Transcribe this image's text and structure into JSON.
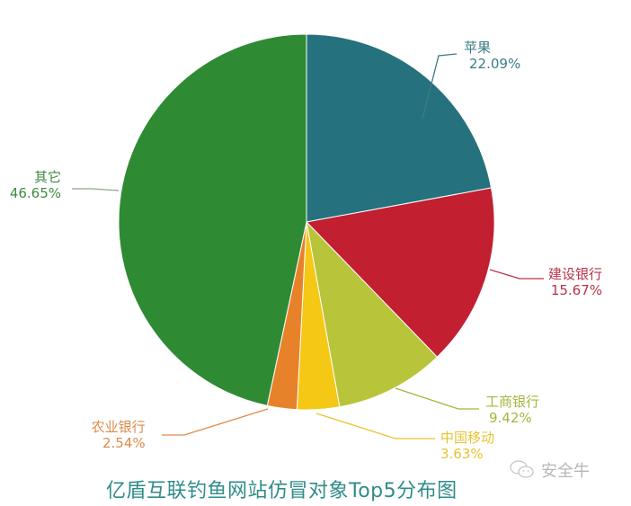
{
  "chart_data": {
    "type": "pie",
    "title": "亿盾互联钓鱼网站仿冒对象Top5分布图",
    "start_angle_deg": -90,
    "direction": "clockwise",
    "categories": [
      "苹果",
      "建设银行",
      "工商银行",
      "中国移动",
      "农业银行",
      "其它"
    ],
    "values": [
      22.09,
      15.67,
      9.42,
      3.63,
      2.54,
      46.65
    ],
    "labels": [
      "22.09%",
      "15.67%",
      "9.42%",
      "3.63%",
      "2.54%",
      "46.65%"
    ],
    "colors": [
      "#25727e",
      "#c21f30",
      "#b8c43a",
      "#f5c816",
      "#e8822a",
      "#2f8a34"
    ],
    "legend": "none (outside labels with leader lines)"
  },
  "labels": {
    "apple": {
      "name": "苹果",
      "pct": "22.09%",
      "color": "#3a7c86"
    },
    "ccb": {
      "name": "建设银行",
      "pct": "15.67%",
      "color": "#b8344a"
    },
    "icbc": {
      "name": "工商银行",
      "pct": "9.42%",
      "color": "#a9b43c"
    },
    "mobile": {
      "name": "中国移动",
      "pct": "3.63%",
      "color": "#e8c330"
    },
    "abc": {
      "name": "农业银行",
      "pct": "2.54%",
      "color": "#e08a4a"
    },
    "other": {
      "name": "其它",
      "pct": "46.65%",
      "color": "#3f8a45"
    }
  },
  "title": "亿盾互联钓鱼网站仿冒对象Top5分布图",
  "watermark": {
    "text": "安全牛",
    "icon": "wechat-icon"
  }
}
